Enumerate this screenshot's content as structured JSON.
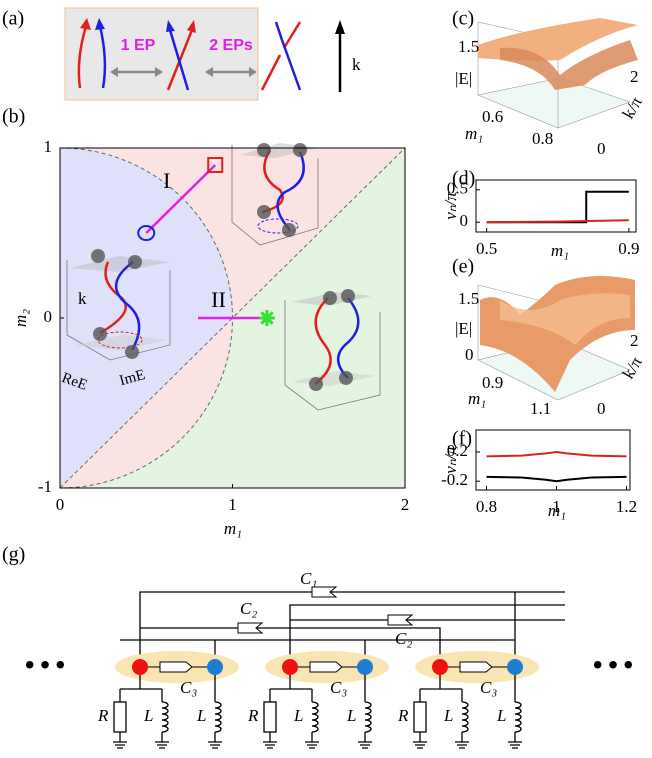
{
  "panel_labels": [
    "(a)",
    "(b)",
    "(c)",
    "(d)",
    "(e)",
    "(f)",
    "(g)"
  ],
  "panel_a": {
    "labels": [
      "1 EP",
      "2 EPs"
    ],
    "axis": "k"
  },
  "panel_b_insets": {
    "axis": "k",
    "re": "ReE",
    "im": "ImE"
  },
  "panel_c": {
    "zticks": [
      1.5
    ],
    "zlabel": "|E|",
    "xticks": [
      0.6,
      0.8
    ],
    "xlabel": "m₁",
    "yticks": [
      0,
      2
    ],
    "ylabel": "k/π"
  },
  "panel_e": {
    "zticks": [
      1.5,
      0
    ],
    "zlabel": "|E|",
    "xticks": [
      0.9,
      1.1
    ],
    "xlabel": "m₁",
    "yticks": [
      0,
      2
    ],
    "ylabel": "k/π"
  },
  "chart_data": [
    {
      "type": "phase",
      "xlabel": "m₁",
      "ylabel": "m₂",
      "xlim": [
        0,
        2
      ],
      "ylim": [
        -1,
        1
      ],
      "xticks": [
        0,
        1,
        2
      ],
      "yticks": [
        -1,
        0,
        1
      ],
      "markers": [
        {
          "x": 0.9,
          "y": 0.9,
          "shape": "square",
          "color": "#e0201b"
        },
        {
          "x": 0.5,
          "y": 0.5,
          "shape": "circle",
          "color": "#1f1fe0"
        },
        {
          "x": 1.2,
          "y": 0,
          "shape": "star",
          "color": "#33e033"
        }
      ],
      "paths": [
        {
          "name": "I",
          "x": [
            0.5,
            0.9
          ],
          "y": [
            0.5,
            0.9
          ]
        },
        {
          "name": "II",
          "x": [
            0.8,
            1.2
          ],
          "y": [
            0,
            0
          ]
        }
      ],
      "path_color": "#e020e0"
    },
    {
      "type": "line",
      "xlabel": "m₁",
      "ylabel": "νₙ/π",
      "xlim": [
        0.47,
        0.92
      ],
      "ylim": [
        -0.15,
        0.65
      ],
      "xticks": [
        0.5,
        0.9
      ],
      "yticks": [
        0,
        0.5
      ],
      "x": [
        0.5,
        0.7,
        0.78,
        0.78,
        0.9
      ],
      "series": [
        {
          "color": "#000000",
          "values": [
            0,
            0,
            0,
            0.47,
            0.47
          ]
        },
        {
          "color": "#e0201b",
          "values": [
            0,
            0.01,
            0.02,
            0.02,
            0.03
          ]
        }
      ]
    },
    {
      "type": "line",
      "xlabel": "m₁",
      "ylabel": "νₙ/π",
      "xlim": [
        0.77,
        1.21
      ],
      "ylim": [
        -0.32,
        0.5
      ],
      "xticks": [
        0.8,
        1,
        1.2
      ],
      "yticks": [
        -0.2,
        0.2
      ],
      "x": [
        0.8,
        0.9,
        0.97,
        1,
        1.03,
        1.1,
        1.2
      ],
      "series": [
        {
          "color": "#000000",
          "values": [
            -0.14,
            -0.15,
            -0.18,
            -0.2,
            -0.18,
            -0.15,
            -0.14
          ]
        },
        {
          "color": "#e0201b",
          "values": [
            0.14,
            0.15,
            0.18,
            0.2,
            0.18,
            0.15,
            0.14
          ]
        }
      ]
    }
  ],
  "circuit": {
    "capacitors": [
      "C₁",
      "C₂",
      "C₂",
      "C₃",
      "C₃",
      "C₃"
    ],
    "cells": [
      [
        "R",
        "L",
        "L"
      ],
      [
        "R",
        "L",
        "L"
      ],
      [
        "R",
        "L",
        "L"
      ]
    ],
    "ellipsis": [
      "•••",
      "•••"
    ]
  }
}
